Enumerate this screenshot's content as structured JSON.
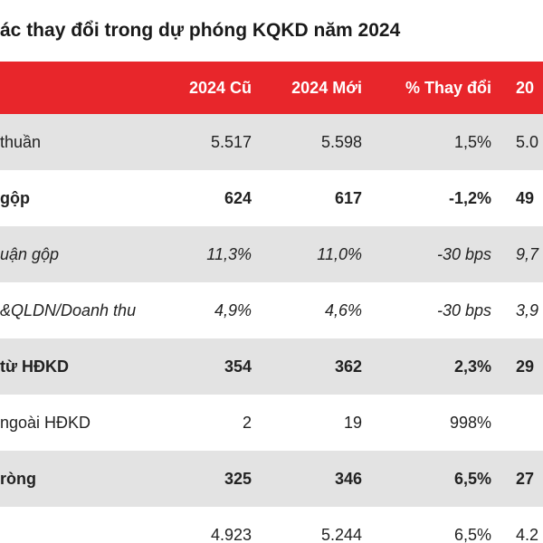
{
  "title": "ác thay đổi trong dự phóng KQKD năm 2024",
  "table": {
    "headers": [
      "",
      "2024 Cũ",
      "2024 Mới",
      "% Thay đổi",
      "20"
    ],
    "rows": [
      {
        "label": "thuần",
        "old": "5.517",
        "new": "5.598",
        "change": "1,5%",
        "next": "5.0"
      },
      {
        "label": "gộp",
        "old": "624",
        "new": "617",
        "change": "-1,2%",
        "next": "49"
      },
      {
        "label": "uận gộp",
        "old": "11,3%",
        "new": "11,0%",
        "change": "-30 bps",
        "next": "9,7"
      },
      {
        "label": "&QLDN/Doanh thu",
        "old": "4,9%",
        "new": "4,6%",
        "change": "-30 bps",
        "next": "3,9"
      },
      {
        "label": "từ HĐKD",
        "old": "354",
        "new": "362",
        "change": "2,3%",
        "next": "29"
      },
      {
        "label": "ngoài HĐKD",
        "old": "2",
        "new": "19",
        "change": "998%",
        "next": ""
      },
      {
        "label": "ròng",
        "old": "325",
        "new": "346",
        "change": "6,5%",
        "next": "27"
      },
      {
        "label": "",
        "old": "4.923",
        "new": "5.244",
        "change": "6,5%",
        "next": "4.2"
      }
    ]
  },
  "colors": {
    "header_bg": "#e8262b",
    "header_text": "#ffffff",
    "shade_bg": "#e3e3e3"
  }
}
